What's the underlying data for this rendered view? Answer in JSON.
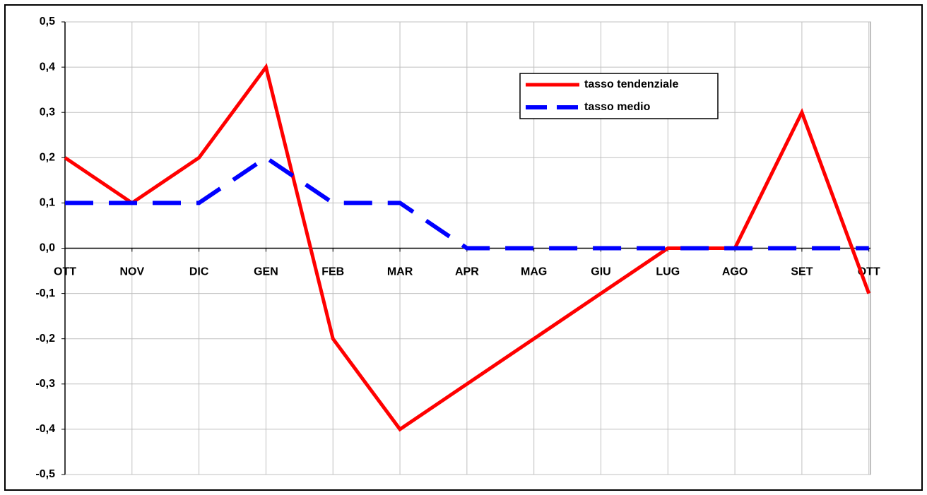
{
  "chart_data": {
    "type": "line",
    "categories": [
      "OTT",
      "NOV",
      "DIC",
      "GEN",
      "FEB",
      "MAR",
      "APR",
      "MAG",
      "GIU",
      "LUG",
      "AGO",
      "SET",
      "OTT"
    ],
    "series": [
      {
        "name": "tasso tendenziale",
        "color": "#ff0000",
        "values": [
          0.2,
          0.1,
          0.2,
          0.4,
          -0.2,
          -0.4,
          -0.3,
          -0.2,
          -0.1,
          0,
          0,
          0.3,
          -0.1
        ]
      },
      {
        "name": "tasso medio",
        "color": "#0000ff",
        "values": [
          0.1,
          0.1,
          0.1,
          0.2,
          0.1,
          0.1,
          0,
          0,
          0,
          0,
          0,
          0,
          0
        ]
      }
    ],
    "ylim": [
      -0.5,
      0.5
    ],
    "yticks": [
      {
        "value": -0.5,
        "label": "-0,5"
      },
      {
        "value": -0.4,
        "label": "-0,4"
      },
      {
        "value": -0.3,
        "label": "-0,3"
      },
      {
        "value": -0.2,
        "label": "-0,2"
      },
      {
        "value": -0.1,
        "label": "-0,1"
      },
      {
        "value": 0,
        "label": "0,0"
      },
      {
        "value": 0.1,
        "label": "0,1"
      },
      {
        "value": 0.2,
        "label": "0,2"
      },
      {
        "value": 0.3,
        "label": "0,3"
      },
      {
        "value": 0.4,
        "label": "0,4"
      },
      {
        "value": 0.5,
        "label": "0,5"
      }
    ],
    "grid": true,
    "legend": "upper right"
  }
}
